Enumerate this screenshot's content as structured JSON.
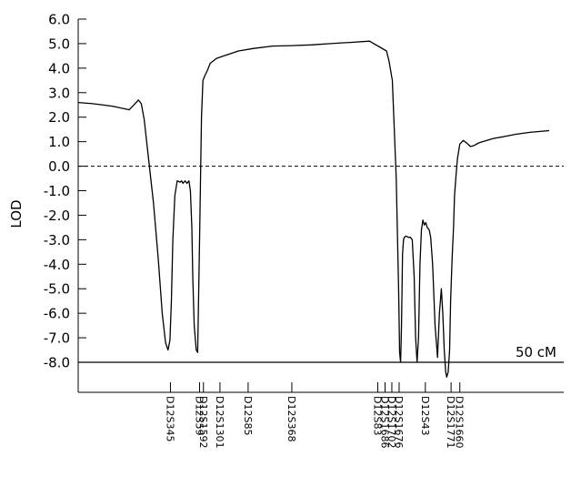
{
  "chart_data": {
    "type": "line",
    "title": "",
    "xlabel": "",
    "ylabel": "LOD",
    "ylim": [
      -8.0,
      6.0
    ],
    "yticks": [
      "6.0",
      "5.0",
      "4.0",
      "3.0",
      "2.0",
      "1.0",
      "0.0",
      "-1.0",
      "-2.0",
      "-3.0",
      "-4.0",
      "-5.0",
      "-6.0",
      "-7.0",
      "-8.0"
    ],
    "xlim": [
      0,
      100
    ],
    "grid": false,
    "reference_line": {
      "y": 0.0,
      "style": "dashed"
    },
    "baseline": {
      "y": -8.0,
      "label": "50 cM"
    },
    "markers": [
      {
        "name": "D12S345",
        "x": 19.0
      },
      {
        "name": "D12S59",
        "x": 25.0
      },
      {
        "name": "D12S1592",
        "x": 25.8
      },
      {
        "name": "D12S1301",
        "x": 29.2
      },
      {
        "name": "D12S85",
        "x": 35.0
      },
      {
        "name": "D12S368",
        "x": 44.0
      },
      {
        "name": "D12S83",
        "x": 61.7
      },
      {
        "name": "D12S1686",
        "x": 63.2
      },
      {
        "name": "D12S1702",
        "x": 64.6
      },
      {
        "name": "D12S1676",
        "x": 66.1
      },
      {
        "name": "D12S43",
        "x": 71.5
      },
      {
        "name": "D12S1771",
        "x": 76.8
      },
      {
        "name": "D12S1660",
        "x": 78.6
      }
    ],
    "series": [
      {
        "x": [
          0,
          3,
          7,
          10.5,
          11.7,
          12.4,
          13,
          13.6,
          14.5,
          15.5,
          16.5,
          17.3,
          18,
          18.5,
          18.9,
          19.2,
          19.5,
          19.9,
          20.4,
          21,
          21.3,
          21.6,
          22,
          22.4,
          22.8,
          23.1,
          23.4,
          23.6,
          23.9,
          24.3,
          24.6,
          25.0,
          25.4,
          25.7,
          26.1,
          26.6,
          27.2,
          28.5,
          30,
          33,
          36,
          40,
          44,
          48,
          52,
          56,
          60,
          63.5,
          64,
          64.7,
          65.5,
          66.0,
          66.2,
          66.4,
          66.6,
          66.8,
          67.0,
          67.2,
          67.5,
          68.0,
          68.4,
          68.8,
          69.2,
          69.5,
          69.8,
          70.1,
          70.4,
          70.7,
          71.0,
          71.3,
          71.6,
          71.9,
          72.1,
          72.3,
          72.6,
          73.0,
          73.5,
          74.0,
          74.4,
          74.8,
          75.1,
          75.4,
          75.7,
          75.9,
          76.2,
          76.5,
          76.7,
          77.0,
          77.3,
          77.5,
          77.8,
          78.1,
          78.6,
          79.3,
          80.0,
          80.8,
          81.6,
          82.5,
          83.3,
          84.2,
          85,
          86,
          87.5,
          90,
          93,
          97
        ],
        "y": [
          2.6,
          2.55,
          2.45,
          2.3,
          2.55,
          2.7,
          2.55,
          1.9,
          0.3,
          -1.5,
          -3.8,
          -6.0,
          -7.2,
          -7.5,
          -7.1,
          -5.5,
          -3.0,
          -1.2,
          -0.6,
          -0.65,
          -0.6,
          -0.7,
          -0.6,
          -0.7,
          -0.6,
          -1.0,
          -2.5,
          -4.5,
          -6.5,
          -7.5,
          -7.6,
          -3.0,
          2.0,
          3.5,
          3.7,
          3.9,
          4.2,
          4.4,
          4.5,
          4.7,
          4.8,
          4.9,
          4.92,
          4.95,
          5.0,
          5.05,
          5.1,
          4.7,
          4.3,
          3.5,
          -0.5,
          -5.0,
          -7.6,
          -8.0,
          -6.5,
          -3.6,
          -3.0,
          -2.9,
          -2.85,
          -2.9,
          -2.9,
          -3.0,
          -4.5,
          -7.0,
          -8.0,
          -7.0,
          -4.0,
          -2.6,
          -2.2,
          -2.4,
          -2.3,
          -2.5,
          -2.55,
          -2.6,
          -2.9,
          -4.0,
          -6.5,
          -7.8,
          -6.0,
          -5.0,
          -6.0,
          -7.5,
          -8.4,
          -8.6,
          -8.4,
          -7.5,
          -5.5,
          -3.8,
          -2.5,
          -1.2,
          -0.4,
          0.3,
          0.9,
          1.05,
          0.95,
          0.8,
          0.85,
          0.95,
          1.0,
          1.05,
          1.1,
          1.15,
          1.2,
          1.3,
          1.38,
          1.45
        ]
      }
    ]
  }
}
